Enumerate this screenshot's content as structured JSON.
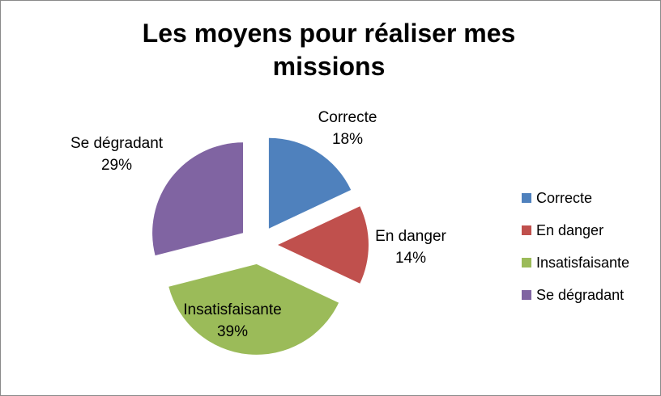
{
  "chart_data": {
    "type": "pie",
    "title": "Les moyens pour réaliser mes missions",
    "legend_position": "right",
    "style": "exploded pie, all slices offset from center, labels show category and percent",
    "total": 100,
    "slices": [
      {
        "label": "Correcte",
        "value": 18,
        "pct_label": "18%",
        "color": "#4F81BD"
      },
      {
        "label": "En danger",
        "value": 14,
        "pct_label": "14%",
        "color": "#C0504D"
      },
      {
        "label": "Insatisfaisante",
        "value": 39,
        "pct_label": "39%",
        "color": "#9BBB59"
      },
      {
        "label": "Se dégradant",
        "value": 29,
        "pct_label": "29%",
        "color": "#8064A2"
      }
    ]
  }
}
